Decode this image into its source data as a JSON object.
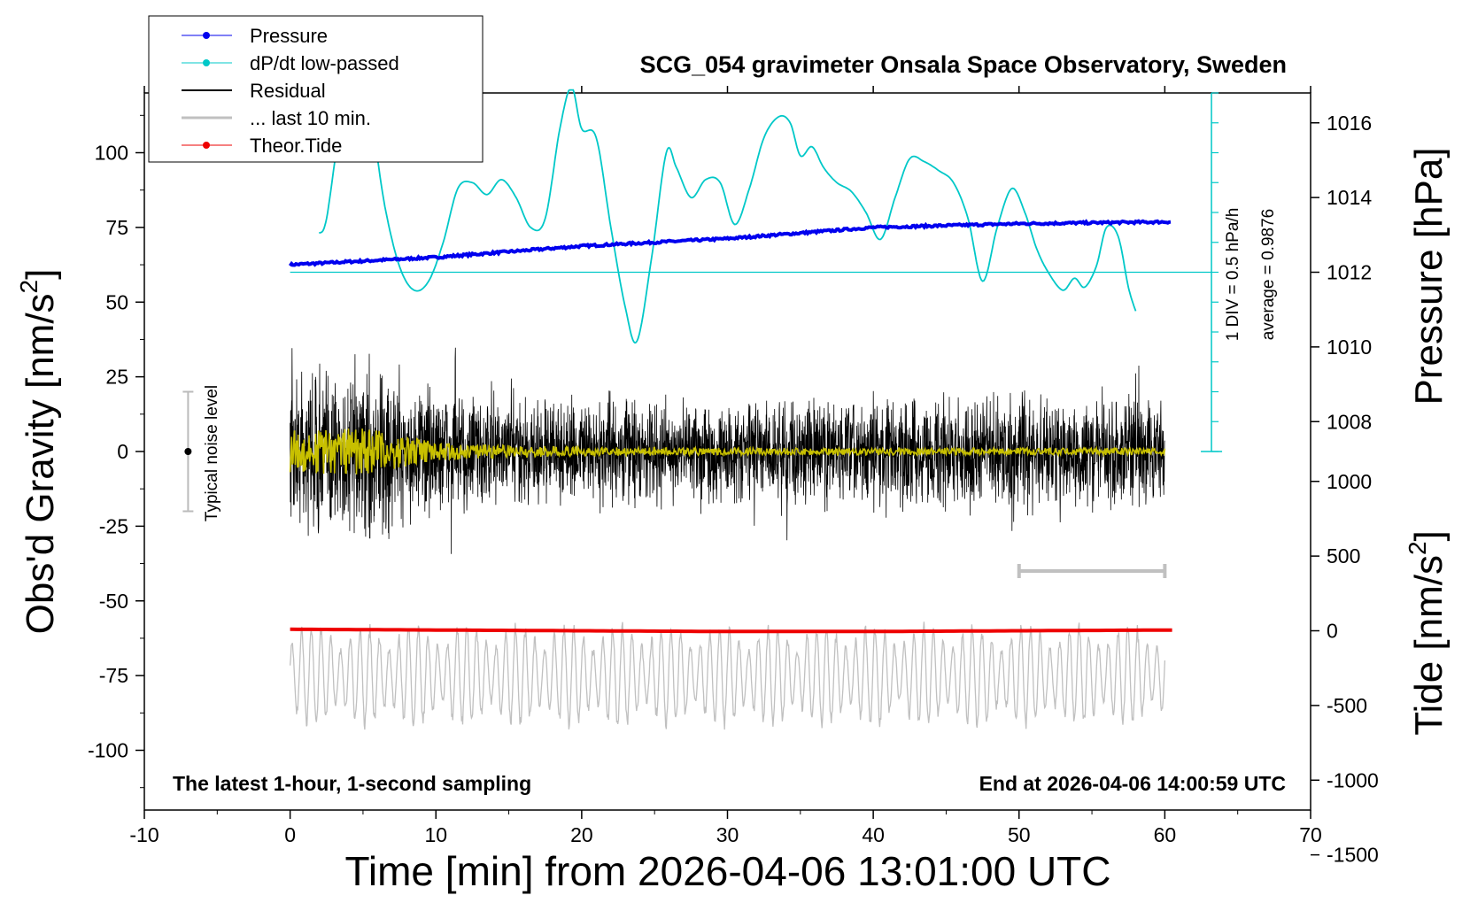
{
  "chart_data": {
    "type": "line",
    "title": "SCG_054 gravimeter Onsala Space Observatory, Sweden",
    "xlabel": "Time [min] from 2026-04-06 13:01:00 UTC",
    "ylabel_left": "Obs'd Gravity [nm/s",
    "ylabel_left_sup": "2",
    "ylabel_left_close": "]",
    "ylabel_pressure": "Pressure [hPa]",
    "ylabel_tide": "Tide [nm/s",
    "ylabel_tide_sup": "2",
    "ylabel_tide_close": "]",
    "xlim": [
      -10,
      70
    ],
    "ylim": [
      -120,
      120
    ],
    "x_ticks": [
      "-10",
      "0",
      "10",
      "20",
      "30",
      "40",
      "50",
      "60",
      "70"
    ],
    "y_ticks": [
      "100",
      "75",
      "50",
      "25",
      "0",
      "-25",
      "-50",
      "-75",
      "-100"
    ],
    "pressure_ticks": [
      "1016",
      "1014",
      "1012",
      "1010",
      "1008"
    ],
    "tide_ticks": [
      "1000",
      "500",
      "0",
      "-500",
      "-1000",
      "-1500"
    ],
    "pressure_axis": {
      "gravity_at_1012": 60,
      "gravity_per_hpa": 12.5
    },
    "tide_axis": {
      "gravity_at_0": -60,
      "gravity_per_nms2": 0.05
    },
    "dpdt_scale_label": "1 DIV = 0.5 hPa/h",
    "dpdt_average_label": "average = 0.9876",
    "noise_label": "Typical noise level",
    "noise_bar": {
      "x": -7,
      "center": 0,
      "half_range": 20
    },
    "bottom_left_text": "The latest 1-hour, 1-second sampling",
    "bottom_right_text": "End at 2026-04-06 14:00:59 UTC",
    "last10_bar": {
      "x0": 50,
      "x1": 60,
      "y": -40
    },
    "legend": [
      {
        "label": "Pressure",
        "color": "#0000ee",
        "marker": true
      },
      {
        "label": "dP/dt low-passed",
        "color": "#00c8c8",
        "marker": true
      },
      {
        "label": "Residual",
        "color": "#000000",
        "marker": false
      },
      {
        "label": "... last 10 min.",
        "color": "#c0c0c0",
        "marker": false
      },
      {
        "label": "Theor.Tide",
        "color": "#ee0000",
        "marker": true
      }
    ],
    "series": [
      {
        "name": "Pressure",
        "color": "#0000ee",
        "units": "hPa",
        "x": [
          0,
          10,
          20,
          30,
          40,
          50,
          60.5
        ],
        "y": [
          1012.2,
          1012.4,
          1012.7,
          1012.9,
          1013.2,
          1013.3,
          1013.35
        ]
      },
      {
        "name": "dP/dt low-passed",
        "color": "#00c8c8",
        "units": "gravity-axis",
        "x": [
          2,
          2.5,
          3.5,
          4.5,
          5.5,
          6.5,
          7.5,
          8.5,
          9.5,
          10.5,
          11.5,
          12.5,
          13.5,
          14.5,
          15.5,
          16.5,
          17.5,
          18.5,
          19.3,
          20,
          21,
          22,
          23,
          23.8,
          24.8,
          25.8,
          26.5,
          27.5,
          28.5,
          29.5,
          30.5,
          31.5,
          32.5,
          33.5,
          34.3,
          35,
          35.8,
          36.6,
          37.5,
          38.5,
          39.5,
          40.5,
          41.5,
          42.5,
          43.5,
          44.5,
          45.5,
          46.5,
          47.5,
          48.5,
          49.5,
          50.4,
          51.2,
          52,
          53,
          53.8,
          54.5,
          55.3,
          56,
          56.8,
          57.5,
          58
        ],
        "y": [
          73,
          78,
          110,
          118,
          112,
          82,
          62,
          54,
          57,
          70,
          88,
          90,
          86,
          91,
          85,
          75,
          78,
          108,
          122,
          108,
          105,
          75,
          48,
          37,
          65,
          100,
          95,
          85,
          91,
          90,
          76,
          88,
          105,
          112,
          110,
          99,
          102,
          95,
          90,
          87,
          80,
          71,
          85,
          98,
          97,
          94,
          90,
          78,
          57,
          75,
          88,
          80,
          68,
          60,
          54,
          58,
          55,
          62,
          75,
          72,
          55,
          47
        ]
      },
      {
        "name": "Residual",
        "color": "#000000",
        "units": "nm/s2",
        "envelope": {
          "x": [
            0,
            5,
            10,
            20,
            30,
            40,
            50,
            60
          ],
          "amp": [
            38,
            40,
            28,
            22,
            22,
            24,
            24,
            24
          ]
        },
        "x_range": [
          0,
          60
        ]
      },
      {
        "name": "Residual low-passed",
        "color": "#c8c000",
        "units": "nm/s2",
        "envelope": {
          "x": [
            0,
            5,
            10,
            20,
            30,
            40,
            50,
            60
          ],
          "amp": [
            7,
            8,
            3,
            1.5,
            1.2,
            1.2,
            1.2,
            1.2
          ]
        },
        "x_range": [
          0,
          60
        ]
      },
      {
        "name": "... last 10 min.",
        "color": "#c0c0c0",
        "units": "gravity-axis",
        "center": -75,
        "amp": 16,
        "x_range": [
          0,
          60
        ]
      },
      {
        "name": "Theor.Tide",
        "color": "#ee0000",
        "units": "nm/s2",
        "x": [
          0,
          10,
          20,
          30,
          40,
          50,
          60.5
        ],
        "y": [
          10,
          5,
          0,
          -5,
          -5,
          0,
          5
        ]
      }
    ]
  }
}
